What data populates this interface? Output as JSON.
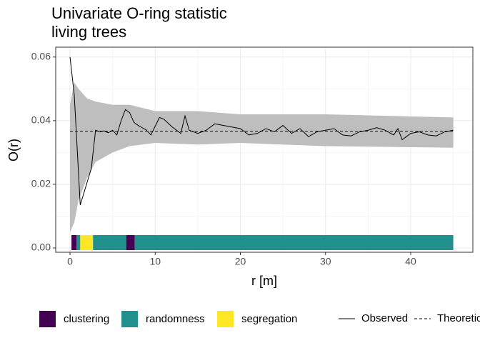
{
  "chart_data": {
    "type": "line",
    "title": [
      "Univariate O-ring statistic",
      "living trees"
    ],
    "x_label": "r [m]",
    "y_label": "O(r)",
    "xlim": [
      -1.68,
      47.3
    ],
    "ylim": [
      -0.00135,
      0.0631
    ],
    "xticks": [
      0,
      10,
      20,
      30,
      40
    ],
    "yticks": [
      {
        "value": 0,
        "label": "0.00"
      },
      0.02,
      0.04,
      0.06
    ],
    "xminor": [
      5,
      15,
      25,
      35,
      45
    ],
    "yminor": [
      0.01,
      0.03,
      0.05
    ],
    "grid": true,
    "envelope": {
      "color": "#bebebe",
      "x": [
        0,
        0.5,
        1,
        2,
        3,
        5,
        7,
        10,
        15,
        20,
        30,
        45
      ],
      "lower": [
        0.005,
        0.008,
        0.015,
        0.022,
        0.027,
        0.03,
        0.032,
        0.033,
        0.0325,
        0.033,
        0.032,
        0.0315
      ],
      "upper": [
        0.045,
        0.052,
        0.05,
        0.047,
        0.046,
        0.045,
        0.045,
        0.043,
        0.043,
        0.042,
        0.042,
        0.041
      ]
    },
    "series": [
      {
        "name": "Observed",
        "color": "#000000",
        "dash": "solid",
        "x": [
          0,
          0.5,
          1.2,
          2.5,
          3,
          3.5,
          4,
          4.5,
          5,
          5.5,
          6,
          6.5,
          7,
          7.5,
          8,
          9,
          9.5,
          10.5,
          11,
          12,
          13,
          13.5,
          14,
          15,
          16,
          17,
          18,
          19,
          20,
          21,
          22,
          23,
          24,
          25,
          26,
          27,
          28,
          29,
          30,
          31,
          32,
          33,
          34,
          35,
          36,
          37,
          38,
          38.5,
          39,
          40,
          41,
          42,
          43,
          44,
          45
        ],
        "values": [
          0.06,
          0.048,
          0.0135,
          0.025,
          0.037,
          0.0365,
          0.0368,
          0.0362,
          0.037,
          0.0355,
          0.04,
          0.0435,
          0.0425,
          0.0395,
          0.0385,
          0.037,
          0.0355,
          0.041,
          0.0405,
          0.038,
          0.036,
          0.0415,
          0.037,
          0.036,
          0.037,
          0.039,
          0.0385,
          0.038,
          0.0375,
          0.0355,
          0.036,
          0.0375,
          0.0365,
          0.0385,
          0.036,
          0.0375,
          0.035,
          0.0365,
          0.037,
          0.0375,
          0.0355,
          0.0352,
          0.0365,
          0.037,
          0.0378,
          0.037,
          0.0355,
          0.0375,
          0.034,
          0.036,
          0.0365,
          0.0355,
          0.0352,
          0.0365,
          0.037
        ]
      },
      {
        "name": "Theoretical",
        "color": "#000000",
        "dash": "dashed",
        "x": [
          0,
          45
        ],
        "values": [
          0.0367,
          0.0367
        ]
      }
    ],
    "tiles": {
      "legend": [
        {
          "name": "clustering",
          "color": "#440154"
        },
        {
          "name": "randomness",
          "color": "#21908C"
        },
        {
          "name": "segregation",
          "color": "#FDE725"
        }
      ],
      "segments": [
        {
          "start": 0.17,
          "end": 0.75,
          "class": "clustering"
        },
        {
          "start": 0.75,
          "end": 1.2,
          "class": "randomness"
        },
        {
          "start": 1.2,
          "end": 2.7,
          "class": "segregation"
        },
        {
          "start": 2.7,
          "end": 6.6,
          "class": "randomness"
        },
        {
          "start": 6.6,
          "end": 7.6,
          "class": "clustering"
        },
        {
          "start": 7.6,
          "end": 45,
          "class": "randomness"
        }
      ]
    }
  }
}
